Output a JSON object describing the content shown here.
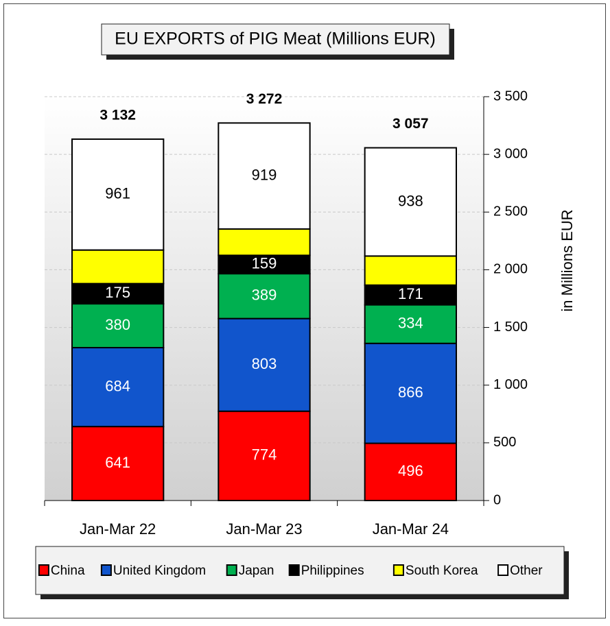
{
  "chart_data": {
    "type": "stacked-bar",
    "title": "EU EXPORTS of PIG Meat (Millions EUR)",
    "y_axis_label": "in Millions EUR",
    "y_axis_side": "right",
    "categories": [
      "Jan-Mar 22",
      "Jan-Mar 23",
      "Jan-Mar 24"
    ],
    "series": [
      {
        "name": "China",
        "color": "#ff0000",
        "values": [
          641,
          774,
          496
        ]
      },
      {
        "name": "United Kingdom",
        "color": "#1155cc",
        "values": [
          684,
          803,
          866
        ]
      },
      {
        "name": "Japan",
        "color": "#00b050",
        "values": [
          380,
          389,
          334
        ]
      },
      {
        "name": "Philippines",
        "color": "#000000",
        "values": [
          175,
          159,
          171
        ]
      },
      {
        "name": "South Korea",
        "color": "#ffff00",
        "values": [
          291,
          228,
          252
        ],
        "labels": false
      },
      {
        "name": "Other",
        "color": "#ffffff",
        "values": [
          961,
          919,
          938
        ]
      }
    ],
    "totals": [
      3132,
      3272,
      3057
    ],
    "total_labels": [
      "3 132",
      "3 272",
      "3 057"
    ],
    "ylim": [
      0,
      3500
    ],
    "yticks": [
      0,
      500,
      {
        "value": 1000,
        "label": "1 000"
      },
      {
        "value": 1500,
        "label": "1 500"
      },
      {
        "value": 2000,
        "label": "2 000"
      },
      {
        "value": 2500,
        "label": "2 500"
      },
      {
        "value": 3000,
        "label": "3 000"
      },
      {
        "value": 3500,
        "label": "3 500"
      }
    ],
    "grid": true,
    "legend": "bottom"
  }
}
